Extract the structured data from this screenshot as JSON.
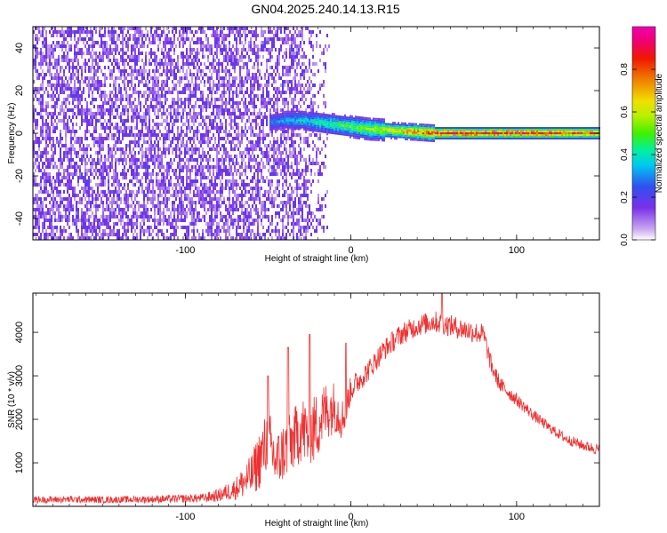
{
  "title": "GN04.2025.240.14.13.R15",
  "chart_data": [
    {
      "type": "heatmap",
      "title": "GN04.2025.240.14.13.R15",
      "xlabel": "Height of straight line (km)",
      "ylabel": "Frequency (Hz)",
      "xlim": [
        -192,
        150
      ],
      "ylim": [
        -50,
        50
      ],
      "xticks": [
        -100,
        0,
        100
      ],
      "yticks": [
        -40,
        -20,
        0,
        20,
        40
      ],
      "colorbar": {
        "label": "Normalized spectral amplitude",
        "range": [
          0,
          1
        ],
        "ticks": [
          "0.0",
          "0.2",
          "0.4",
          "0.6",
          "0.8"
        ],
        "tick_values": [
          0.0,
          0.2,
          0.4,
          0.6,
          0.8
        ],
        "colors": [
          "#ffffff",
          "#c8a8f0",
          "#7a30e8",
          "#3050f0",
          "#00c8f0",
          "#00f0a0",
          "#40f000",
          "#b8f000",
          "#f0e000",
          "#f08000",
          "#f01800",
          "#f00070",
          "#f000b0"
        ],
        "color_stops": [
          0.0,
          0.05,
          0.15,
          0.25,
          0.35,
          0.42,
          0.5,
          0.58,
          0.65,
          0.75,
          0.85,
          0.93,
          1.0
        ]
      },
      "noise_region": {
        "x": [
          -192,
          -30
        ],
        "amplitude": 0.15
      },
      "signal_track": [
        {
          "x": -50,
          "freq": 5,
          "amplitude": 0.3
        },
        {
          "x": -40,
          "freq": 6,
          "amplitude": 0.35
        },
        {
          "x": -30,
          "freq": 6,
          "amplitude": 0.4
        },
        {
          "x": -20,
          "freq": 5,
          "amplitude": 0.45
        },
        {
          "x": -10,
          "freq": 4,
          "amplitude": 0.5
        },
        {
          "x": 0,
          "freq": 3,
          "amplitude": 0.55
        },
        {
          "x": 10,
          "freq": 2,
          "amplitude": 0.6
        },
        {
          "x": 20,
          "freq": 1.5,
          "amplitude": 0.65
        },
        {
          "x": 30,
          "freq": 1,
          "amplitude": 0.75
        },
        {
          "x": 40,
          "freq": 0.5,
          "amplitude": 0.85
        },
        {
          "x": 50,
          "freq": 0,
          "amplitude": 0.95
        },
        {
          "x": 100,
          "freq": 0,
          "amplitude": 0.95
        },
        {
          "x": 150,
          "freq": 0,
          "amplitude": 0.9
        }
      ]
    },
    {
      "type": "line",
      "xlabel": "Height of straight line (km)",
      "ylabel": "SNR (10 * v/v)",
      "xlim": [
        -192,
        150
      ],
      "ylim": [
        0,
        4900
      ],
      "xticks": [
        -100,
        0,
        100
      ],
      "yticks": [
        1000,
        2000,
        3000,
        4000
      ],
      "color": "#f03030",
      "series": [
        {
          "name": "SNR",
          "x": [
            -192,
            -170,
            -150,
            -130,
            -110,
            -90,
            -80,
            -70,
            -60,
            -55,
            -50,
            -45,
            -40,
            -35,
            -30,
            -25,
            -20,
            -15,
            -10,
            -5,
            0,
            10,
            20,
            30,
            40,
            50,
            60,
            70,
            80,
            85,
            90,
            100,
            110,
            120,
            130,
            140,
            150
          ],
          "values": [
            150,
            160,
            150,
            160,
            170,
            190,
            250,
            400,
            700,
            1100,
            1500,
            1000,
            1300,
            1500,
            1800,
            1600,
            1900,
            2200,
            2300,
            2000,
            2700,
            3100,
            3600,
            3950,
            4150,
            4250,
            4150,
            4050,
            3950,
            3200,
            2800,
            2450,
            2100,
            1800,
            1550,
            1400,
            1300
          ],
          "noise_amplitude": [
            80,
            80,
            80,
            80,
            90,
            100,
            150,
            250,
            500,
            700,
            800,
            700,
            700,
            700,
            800,
            800,
            800,
            700,
            600,
            500,
            300,
            250,
            250,
            250,
            250,
            250,
            250,
            250,
            250,
            200,
            180,
            150,
            130,
            120,
            120,
            120,
            130
          ]
        }
      ],
      "peaks": [
        {
          "x": -50,
          "value": 3000
        },
        {
          "x": -38,
          "value": 3650
        },
        {
          "x": -25,
          "value": 3950
        },
        {
          "x": -3,
          "value": 3750
        },
        {
          "x": 55,
          "value": 4900
        }
      ]
    }
  ]
}
